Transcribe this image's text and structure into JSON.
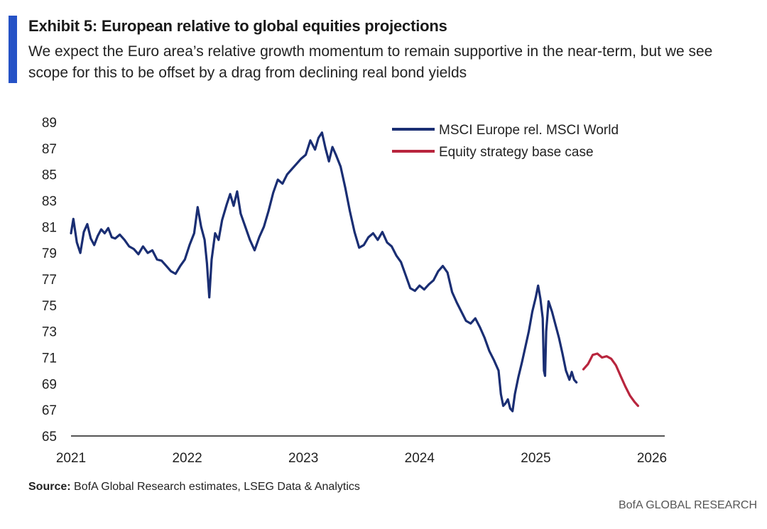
{
  "header": {
    "title": "Exhibit 5: European relative to global equities projections",
    "subtitle": "We expect the Euro area’s relative growth momentum to remain supportive in the near-term, but we see scope for this to be offset by a drag from declining real bond yields",
    "accent_color": "#2552c6"
  },
  "footer": {
    "source_label": "Source:",
    "source_text": " BofA Global Research estimates, LSEG Data & Analytics",
    "brand": "BofA GLOBAL RESEARCH"
  },
  "chart_data": {
    "type": "line",
    "title": "",
    "xlabel": "",
    "ylabel": "",
    "xlim": [
      2021,
      2026
    ],
    "ylim": [
      65,
      89
    ],
    "x_ticks": [
      "2021",
      "2022",
      "2023",
      "2024",
      "2025",
      "2026"
    ],
    "y_ticks": [
      "65",
      "67",
      "69",
      "71",
      "73",
      "75",
      "77",
      "79",
      "81",
      "83",
      "85",
      "87",
      "89"
    ],
    "grid": false,
    "legend_position": "top-right",
    "series": [
      {
        "name": "MSCI Europe rel. MSCI World",
        "color": "#1a2e73",
        "points": [
          [
            2021.0,
            80.5
          ],
          [
            2021.02,
            81.6
          ],
          [
            2021.05,
            79.8
          ],
          [
            2021.08,
            79.0
          ],
          [
            2021.11,
            80.6
          ],
          [
            2021.14,
            81.2
          ],
          [
            2021.17,
            80.1
          ],
          [
            2021.2,
            79.6
          ],
          [
            2021.23,
            80.3
          ],
          [
            2021.26,
            80.8
          ],
          [
            2021.29,
            80.5
          ],
          [
            2021.32,
            80.9
          ],
          [
            2021.35,
            80.2
          ],
          [
            2021.38,
            80.1
          ],
          [
            2021.42,
            80.4
          ],
          [
            2021.46,
            80.0
          ],
          [
            2021.5,
            79.5
          ],
          [
            2021.54,
            79.3
          ],
          [
            2021.58,
            78.9
          ],
          [
            2021.62,
            79.5
          ],
          [
            2021.66,
            79.0
          ],
          [
            2021.7,
            79.2
          ],
          [
            2021.74,
            78.5
          ],
          [
            2021.78,
            78.4
          ],
          [
            2021.82,
            78.0
          ],
          [
            2021.86,
            77.6
          ],
          [
            2021.9,
            77.4
          ],
          [
            2021.94,
            78.0
          ],
          [
            2021.98,
            78.5
          ],
          [
            2022.02,
            79.6
          ],
          [
            2022.06,
            80.5
          ],
          [
            2022.09,
            82.5
          ],
          [
            2022.12,
            81.0
          ],
          [
            2022.15,
            80.0
          ],
          [
            2022.17,
            78.2
          ],
          [
            2022.19,
            75.6
          ],
          [
            2022.21,
            78.5
          ],
          [
            2022.24,
            80.5
          ],
          [
            2022.27,
            80.0
          ],
          [
            2022.3,
            81.5
          ],
          [
            2022.34,
            82.7
          ],
          [
            2022.37,
            83.5
          ],
          [
            2022.4,
            82.6
          ],
          [
            2022.43,
            83.7
          ],
          [
            2022.46,
            82.0
          ],
          [
            2022.5,
            81.0
          ],
          [
            2022.54,
            80.0
          ],
          [
            2022.58,
            79.2
          ],
          [
            2022.62,
            80.2
          ],
          [
            2022.66,
            81.0
          ],
          [
            2022.7,
            82.2
          ],
          [
            2022.74,
            83.6
          ],
          [
            2022.78,
            84.6
          ],
          [
            2022.82,
            84.3
          ],
          [
            2022.86,
            85.0
          ],
          [
            2022.9,
            85.4
          ],
          [
            2022.94,
            85.8
          ],
          [
            2022.98,
            86.2
          ],
          [
            2023.02,
            86.5
          ],
          [
            2023.06,
            87.6
          ],
          [
            2023.1,
            86.9
          ],
          [
            2023.13,
            87.8
          ],
          [
            2023.16,
            88.2
          ],
          [
            2023.19,
            87.0
          ],
          [
            2023.22,
            86.0
          ],
          [
            2023.25,
            87.1
          ],
          [
            2023.28,
            86.5
          ],
          [
            2023.32,
            85.6
          ],
          [
            2023.36,
            84.0
          ],
          [
            2023.4,
            82.2
          ],
          [
            2023.44,
            80.6
          ],
          [
            2023.48,
            79.4
          ],
          [
            2023.52,
            79.6
          ],
          [
            2023.56,
            80.2
          ],
          [
            2023.6,
            80.5
          ],
          [
            2023.64,
            80.0
          ],
          [
            2023.68,
            80.6
          ],
          [
            2023.72,
            79.8
          ],
          [
            2023.76,
            79.5
          ],
          [
            2023.8,
            78.8
          ],
          [
            2023.84,
            78.3
          ],
          [
            2023.88,
            77.3
          ],
          [
            2023.92,
            76.3
          ],
          [
            2023.96,
            76.1
          ],
          [
            2024.0,
            76.5
          ],
          [
            2024.04,
            76.2
          ],
          [
            2024.08,
            76.6
          ],
          [
            2024.12,
            76.9
          ],
          [
            2024.16,
            77.6
          ],
          [
            2024.2,
            78.0
          ],
          [
            2024.24,
            77.5
          ],
          [
            2024.28,
            76.0
          ],
          [
            2024.32,
            75.2
          ],
          [
            2024.36,
            74.5
          ],
          [
            2024.4,
            73.8
          ],
          [
            2024.44,
            73.6
          ],
          [
            2024.48,
            74.0
          ],
          [
            2024.52,
            73.3
          ],
          [
            2024.56,
            72.5
          ],
          [
            2024.6,
            71.5
          ],
          [
            2024.64,
            70.8
          ],
          [
            2024.68,
            70.0
          ],
          [
            2024.7,
            68.2
          ],
          [
            2024.72,
            67.3
          ],
          [
            2024.74,
            67.5
          ],
          [
            2024.76,
            67.8
          ],
          [
            2024.78,
            67.1
          ],
          [
            2024.8,
            66.9
          ],
          [
            2024.82,
            68.2
          ],
          [
            2024.85,
            69.5
          ],
          [
            2024.88,
            70.6
          ],
          [
            2024.91,
            71.8
          ],
          [
            2024.94,
            73.0
          ],
          [
            2024.97,
            74.5
          ],
          [
            2025.0,
            75.6
          ],
          [
            2025.02,
            76.5
          ],
          [
            2025.04,
            75.5
          ],
          [
            2025.06,
            74.0
          ],
          [
            2025.07,
            70.0
          ],
          [
            2025.08,
            69.6
          ],
          [
            2025.09,
            73.0
          ],
          [
            2025.11,
            75.3
          ],
          [
            2025.14,
            74.5
          ],
          [
            2025.17,
            73.5
          ],
          [
            2025.2,
            72.5
          ],
          [
            2025.23,
            71.3
          ],
          [
            2025.26,
            70.0
          ],
          [
            2025.29,
            69.3
          ],
          [
            2025.31,
            69.9
          ],
          [
            2025.33,
            69.3
          ],
          [
            2025.35,
            69.1
          ]
        ]
      },
      {
        "name": "Equity strategy base case",
        "color": "#b8253d",
        "points": [
          [
            2025.41,
            70.1
          ],
          [
            2025.45,
            70.5
          ],
          [
            2025.49,
            71.2
          ],
          [
            2025.53,
            71.3
          ],
          [
            2025.57,
            71.0
          ],
          [
            2025.61,
            71.1
          ],
          [
            2025.65,
            70.9
          ],
          [
            2025.69,
            70.4
          ],
          [
            2025.73,
            69.6
          ],
          [
            2025.77,
            68.8
          ],
          [
            2025.81,
            68.1
          ],
          [
            2025.85,
            67.6
          ],
          [
            2025.88,
            67.3
          ]
        ]
      }
    ]
  }
}
